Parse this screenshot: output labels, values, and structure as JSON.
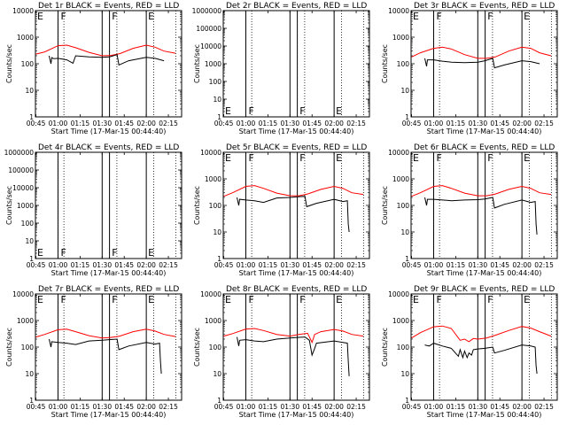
{
  "figure": {
    "xlabel": "Start Time (17-Mar-15 00:44:40)",
    "ylabel": "Counts/sec",
    "x_tick_labels": [
      "00:45",
      "01:00",
      "01:15",
      "01:30",
      "01:45",
      "02:00",
      "02:15"
    ],
    "x_tick_hours": [
      0.75,
      1.0,
      1.25,
      1.5,
      1.75,
      2.0,
      2.25
    ],
    "x_range_hours": [
      0.7444,
      2.4
    ],
    "vlines_hours": [
      1.0,
      1.5,
      1.5833,
      2.0
    ],
    "dotted_vlines_hours": [
      1.0667,
      1.6667,
      2.0833,
      2.3333
    ],
    "colors": {
      "events": "#000000",
      "lld": "#ff0000"
    }
  },
  "chart_data": [
    {
      "type": "line",
      "title": "Det 1r BLACK = Events, RED = LLD",
      "yscale": "log",
      "ylim": [
        1,
        10000
      ],
      "y_tick_labels": [
        "1",
        "10",
        "100",
        "1000",
        "10000"
      ],
      "y_tick_values": [
        1,
        10,
        100,
        1000,
        10000
      ],
      "flags": [
        {
          "label": "E",
          "x": 0.755
        },
        {
          "label": "F",
          "x": 1.02
        },
        {
          "label": "F",
          "x": 1.6
        },
        {
          "label": "E",
          "x": 2.01
        }
      ],
      "series": [
        {
          "color": "#ff0000",
          "x": [
            0.75,
            0.85,
            1.0,
            1.1,
            1.2,
            1.35,
            1.5,
            1.6,
            1.7,
            1.85,
            2.0,
            2.1,
            2.2,
            2.33
          ],
          "values": [
            230,
            280,
            480,
            500,
            400,
            270,
            200,
            205,
            240,
            380,
            500,
            420,
            300,
            250
          ]
        },
        {
          "color": "#000000",
          "x": [
            0.9,
            0.92,
            0.93,
            0.95,
            1.0,
            1.1,
            1.17,
            1.2,
            1.35,
            1.5,
            1.58,
            1.67,
            1.69,
            1.8,
            2.0,
            2.1,
            2.2
          ],
          "values": [
            200,
            100,
            170,
            155,
            160,
            140,
            105,
            200,
            180,
            175,
            180,
            220,
            90,
            130,
            175,
            160,
            130
          ]
        }
      ]
    },
    {
      "type": "line",
      "title": "Det 2r BLACK = Events, RED = LLD",
      "yscale": "log",
      "ylim": [
        1,
        1000000
      ],
      "y_tick_labels": [
        "10^0",
        "10^1",
        "10^2",
        "10^3",
        "10^4",
        "10^5",
        "10^6"
      ],
      "y_tick_values": [
        1,
        10,
        100,
        1000,
        10000,
        100000,
        1000000
      ],
      "flags": [
        {
          "label": "E",
          "x": 0.755
        },
        {
          "label": "F",
          "x": 1.02
        },
        {
          "label": "F",
          "x": 1.6
        },
        {
          "label": "E",
          "x": 2.01
        }
      ],
      "series": []
    },
    {
      "type": "line",
      "title": "Det 3r BLACK = Events, RED = LLD",
      "yscale": "log",
      "ylim": [
        1,
        10000
      ],
      "y_tick_labels": [
        "1",
        "10",
        "100",
        "1000",
        "10000"
      ],
      "y_tick_values": [
        1,
        10,
        100,
        1000,
        10000
      ],
      "flags": [
        {
          "label": "E",
          "x": 0.755
        },
        {
          "label": "F",
          "x": 1.02
        },
        {
          "label": "F",
          "x": 1.6
        },
        {
          "label": "E",
          "x": 2.01
        }
      ],
      "series": [
        {
          "color": "#ff0000",
          "x": [
            0.75,
            0.85,
            1.0,
            1.1,
            1.2,
            1.35,
            1.5,
            1.6,
            1.7,
            1.85,
            2.0,
            2.1,
            2.2,
            2.33
          ],
          "values": [
            180,
            260,
            380,
            420,
            360,
            220,
            160,
            160,
            180,
            300,
            420,
            380,
            260,
            200
          ]
        },
        {
          "color": "#000000",
          "x": [
            0.9,
            0.92,
            0.93,
            1.0,
            1.1,
            1.2,
            1.35,
            1.5,
            1.58,
            1.67,
            1.69,
            1.8,
            2.0,
            2.1,
            2.2
          ],
          "values": [
            160,
            80,
            140,
            140,
            125,
            115,
            110,
            115,
            130,
            160,
            70,
            90,
            130,
            120,
            100
          ]
        }
      ]
    },
    {
      "type": "line",
      "title": "Det 4r BLACK = Events, RED = LLD",
      "yscale": "log",
      "ylim": [
        1,
        1000000
      ],
      "y_tick_labels": [
        "10^0",
        "10^1",
        "10^2",
        "10^3",
        "10^4",
        "10^5",
        "10^6"
      ],
      "y_tick_values": [
        1,
        10,
        100,
        1000,
        10000,
        100000,
        1000000
      ],
      "flags": [
        {
          "label": "E",
          "x": 0.755
        },
        {
          "label": "F",
          "x": 1.02
        },
        {
          "label": "F",
          "x": 1.6
        },
        {
          "label": "E",
          "x": 2.01
        }
      ],
      "series": []
    },
    {
      "type": "line",
      "title": "Det 5r BLACK = Events, RED = LLD",
      "yscale": "log",
      "ylim": [
        1,
        10000
      ],
      "y_tick_labels": [
        "1",
        "10",
        "100",
        "1000",
        "10000"
      ],
      "y_tick_values": [
        1,
        10,
        100,
        1000,
        10000
      ],
      "flags": [
        {
          "label": "E",
          "x": 0.755
        },
        {
          "label": "F",
          "x": 1.02
        },
        {
          "label": "F",
          "x": 1.6
        },
        {
          "label": "E",
          "x": 2.01
        }
      ],
      "series": [
        {
          "color": "#ff0000",
          "x": [
            0.75,
            0.85,
            1.0,
            1.1,
            1.2,
            1.35,
            1.5,
            1.6,
            1.7,
            1.85,
            2.0,
            2.1,
            2.2,
            2.33
          ],
          "values": [
            220,
            300,
            520,
            560,
            440,
            290,
            230,
            230,
            270,
            400,
            520,
            440,
            300,
            260
          ]
        },
        {
          "color": "#000000",
          "x": [
            0.9,
            0.92,
            0.93,
            1.0,
            1.1,
            1.2,
            1.35,
            1.5,
            1.58,
            1.67,
            1.69,
            1.8,
            2.0,
            2.1,
            2.15,
            2.16,
            2.17
          ],
          "values": [
            200,
            100,
            170,
            160,
            150,
            130,
            190,
            200,
            210,
            220,
            90,
            120,
            170,
            140,
            150,
            20,
            10
          ]
        }
      ]
    },
    {
      "type": "line",
      "title": "Det 6r BLACK = Events, RED = LLD",
      "yscale": "log",
      "ylim": [
        1,
        10000
      ],
      "y_tick_labels": [
        "1",
        "10",
        "100",
        "1000",
        "10000"
      ],
      "y_tick_values": [
        1,
        10,
        100,
        1000,
        10000
      ],
      "flags": [
        {
          "label": "E",
          "x": 0.755
        },
        {
          "label": "F",
          "x": 1.02
        },
        {
          "label": "F",
          "x": 1.6
        },
        {
          "label": "E",
          "x": 2.01
        }
      ],
      "series": [
        {
          "color": "#ff0000",
          "x": [
            0.75,
            0.85,
            1.0,
            1.1,
            1.2,
            1.35,
            1.5,
            1.6,
            1.7,
            1.85,
            2.0,
            2.1,
            2.2,
            2.33
          ],
          "values": [
            220,
            300,
            520,
            560,
            440,
            290,
            230,
            230,
            270,
            400,
            520,
            440,
            300,
            260
          ]
        },
        {
          "color": "#000000",
          "x": [
            0.9,
            0.92,
            0.93,
            1.0,
            1.1,
            1.2,
            1.35,
            1.5,
            1.58,
            1.67,
            1.69,
            1.8,
            2.0,
            2.1,
            2.15,
            2.16,
            2.17
          ],
          "values": [
            200,
            100,
            170,
            170,
            160,
            150,
            160,
            165,
            175,
            200,
            80,
            110,
            160,
            130,
            140,
            20,
            8
          ]
        }
      ]
    },
    {
      "type": "line",
      "title": "Det 7r BLACK = Events, RED = LLD",
      "yscale": "log",
      "ylim": [
        1,
        10000
      ],
      "y_tick_labels": [
        "1",
        "10",
        "100",
        "1000",
        "10000"
      ],
      "y_tick_values": [
        1,
        10,
        100,
        1000,
        10000
      ],
      "flags": [
        {
          "label": "E",
          "x": 0.755
        },
        {
          "label": "F",
          "x": 1.02
        },
        {
          "label": "F",
          "x": 1.6
        },
        {
          "label": "E",
          "x": 2.01
        }
      ],
      "series": [
        {
          "color": "#ff0000",
          "x": [
            0.75,
            0.85,
            1.0,
            1.1,
            1.2,
            1.35,
            1.5,
            1.6,
            1.7,
            1.85,
            2.0,
            2.1,
            2.2,
            2.33
          ],
          "values": [
            240,
            300,
            450,
            470,
            380,
            270,
            220,
            230,
            260,
            380,
            470,
            400,
            300,
            250
          ]
        },
        {
          "color": "#000000",
          "x": [
            0.9,
            0.92,
            0.93,
            1.0,
            1.1,
            1.2,
            1.35,
            1.5,
            1.58,
            1.67,
            1.69,
            1.8,
            2.0,
            2.1,
            2.15,
            2.16,
            2.17
          ],
          "values": [
            200,
            100,
            160,
            150,
            140,
            125,
            170,
            180,
            190,
            200,
            80,
            110,
            150,
            130,
            140,
            30,
            10
          ]
        }
      ]
    },
    {
      "type": "line",
      "title": "Det 8r BLACK = Events, RED = LLD",
      "yscale": "log",
      "ylim": [
        1,
        10000
      ],
      "y_tick_labels": [
        "1",
        "10",
        "100",
        "1000",
        "10000"
      ],
      "y_tick_values": [
        1,
        10,
        100,
        1000,
        10000
      ],
      "flags": [
        {
          "label": "E",
          "x": 0.755
        },
        {
          "label": "F",
          "x": 1.02
        },
        {
          "label": "F",
          "x": 1.6
        },
        {
          "label": "E",
          "x": 2.01
        }
      ],
      "series": [
        {
          "color": "#ff0000",
          "x": [
            0.75,
            0.85,
            1.0,
            1.1,
            1.2,
            1.35,
            1.5,
            1.6,
            1.7,
            1.75,
            1.78,
            1.85,
            2.0,
            2.1,
            2.2,
            2.33
          ],
          "values": [
            260,
            320,
            480,
            500,
            420,
            300,
            260,
            300,
            330,
            150,
            300,
            380,
            460,
            400,
            300,
            260
          ]
        },
        {
          "color": "#000000",
          "x": [
            0.9,
            0.92,
            0.93,
            1.0,
            1.1,
            1.2,
            1.35,
            1.5,
            1.58,
            1.67,
            1.72,
            1.75,
            1.78,
            1.8,
            2.0,
            2.1,
            2.15,
            2.16,
            2.17
          ],
          "values": [
            240,
            110,
            180,
            190,
            170,
            160,
            200,
            220,
            230,
            240,
            180,
            50,
            90,
            140,
            170,
            150,
            140,
            30,
            8
          ]
        }
      ]
    },
    {
      "type": "line",
      "title": "Det 9r BLACK = Events, RED = LLD",
      "yscale": "log",
      "ylim": [
        1,
        10000
      ],
      "y_tick_labels": [
        "1",
        "10",
        "100",
        "1000",
        "10000"
      ],
      "y_tick_values": [
        1,
        10,
        100,
        1000,
        10000
      ],
      "flags": [
        {
          "label": "E",
          "x": 0.755
        },
        {
          "label": "F",
          "x": 1.02
        },
        {
          "label": "F",
          "x": 1.6
        },
        {
          "label": "E",
          "x": 2.01
        }
      ],
      "series": [
        {
          "color": "#ff0000",
          "x": [
            0.75,
            0.85,
            1.0,
            1.1,
            1.2,
            1.3,
            1.35,
            1.4,
            1.45,
            1.5,
            1.6,
            1.7,
            1.85,
            2.0,
            2.1,
            2.2,
            2.33
          ],
          "values": [
            220,
            350,
            580,
            620,
            500,
            180,
            200,
            160,
            210,
            200,
            220,
            280,
            420,
            600,
            520,
            380,
            260
          ]
        },
        {
          "color": "#000000",
          "x": [
            0.9,
            0.95,
            1.0,
            1.1,
            1.2,
            1.28,
            1.3,
            1.33,
            1.35,
            1.38,
            1.4,
            1.43,
            1.45,
            1.5,
            1.58,
            1.67,
            1.69,
            1.8,
            2.0,
            2.1,
            2.15,
            2.16,
            2.17
          ],
          "values": [
            120,
            110,
            140,
            110,
            90,
            45,
            80,
            40,
            70,
            40,
            60,
            50,
            80,
            85,
            90,
            100,
            60,
            75,
            120,
            110,
            100,
            20,
            10
          ]
        }
      ]
    }
  ]
}
